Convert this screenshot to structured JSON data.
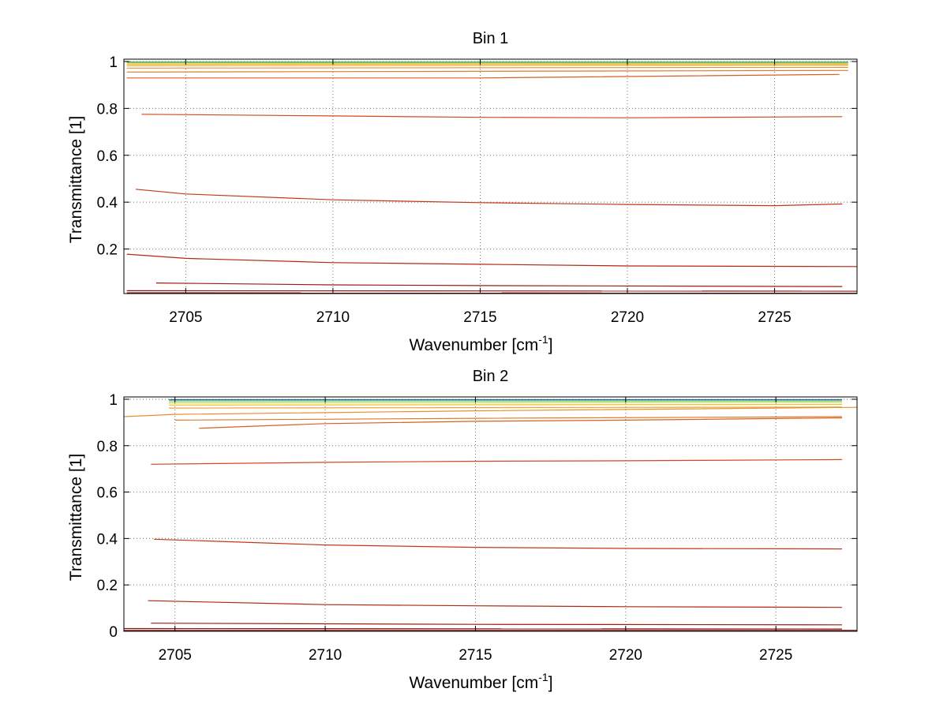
{
  "chart_data": [
    {
      "type": "line",
      "title": "Bin 1",
      "xlabel": "Wavenumber [cm",
      "xlabel_sup": "-1",
      "xlabel_end": "]",
      "ylabel": "Transmittance [1]",
      "xlim": [
        2702.9,
        2727.8
      ],
      "ylim": [
        0.01,
        1.01
      ],
      "xticks": [
        2705,
        2710,
        2715,
        2720,
        2725
      ],
      "yticks": [
        0.2,
        0.4,
        0.6,
        0.8,
        1
      ],
      "ytick_labels": [
        "0.2",
        "0.4",
        "0.6",
        "0.8",
        "1"
      ],
      "grid": true,
      "series": [
        {
          "color": "#1f8fc0",
          "x": [
            2703.0,
            2727.5
          ],
          "y": [
            0.998,
            0.998
          ]
        },
        {
          "color": "#5fc05a",
          "x": [
            2703.0,
            2727.5
          ],
          "y": [
            0.996,
            0.996
          ]
        },
        {
          "color": "#c8d83a",
          "x": [
            2703.0,
            2727.5
          ],
          "y": [
            0.993,
            0.993
          ]
        },
        {
          "color": "#f0c030",
          "x": [
            2703.0,
            2727.5
          ],
          "y": [
            0.988,
            0.99
          ]
        },
        {
          "color": "#f0a030",
          "x": [
            2703.0,
            2727.5
          ],
          "y": [
            0.982,
            0.985
          ]
        },
        {
          "color": "#e89030",
          "x": [
            2703.0,
            2727.5
          ],
          "y": [
            0.972,
            0.975
          ]
        },
        {
          "color": "#e07828",
          "x": [
            2703.0,
            2727.5
          ],
          "y": [
            0.955,
            0.962
          ]
        },
        {
          "color": "#d86020",
          "x": [
            2703.0,
            2715,
            2727.2
          ],
          "y": [
            0.93,
            0.93,
            0.945
          ]
        },
        {
          "color": "#d04a1c",
          "x": [
            2703.5,
            2710,
            2715,
            2720,
            2727.3
          ],
          "y": [
            0.775,
            0.768,
            0.762,
            0.76,
            0.765
          ]
        },
        {
          "color": "#c03a18",
          "x": [
            2703.3,
            2705,
            2710,
            2715,
            2720,
            2725,
            2727.3
          ],
          "y": [
            0.455,
            0.435,
            0.41,
            0.398,
            0.39,
            0.385,
            0.392
          ]
        },
        {
          "color": "#b02a14",
          "x": [
            2703.0,
            2705,
            2710,
            2715,
            2720,
            2727.8
          ],
          "y": [
            0.178,
            0.16,
            0.142,
            0.135,
            0.128,
            0.125
          ]
        },
        {
          "color": "#9a1e10",
          "x": [
            2704.0,
            2710,
            2715,
            2727.3
          ],
          "y": [
            0.055,
            0.047,
            0.044,
            0.04
          ]
        },
        {
          "color": "#8a140c",
          "x": [
            2703.0,
            2727.8
          ],
          "y": [
            0.022,
            0.02
          ]
        },
        {
          "color": "#700808",
          "x": [
            2703.0,
            2727.8
          ],
          "y": [
            0.013,
            0.012
          ]
        }
      ]
    },
    {
      "type": "line",
      "title": "Bin 2",
      "xlabel": "Wavenumber [cm",
      "xlabel_sup": "-1",
      "xlabel_end": "]",
      "ylabel": "Transmittance [1]",
      "xlim": [
        2703.3,
        2727.7
      ],
      "ylim": [
        0,
        1.01
      ],
      "xticks": [
        2705,
        2710,
        2715,
        2720,
        2725
      ],
      "yticks": [
        0,
        0.2,
        0.4,
        0.6,
        0.8,
        1
      ],
      "ytick_labels": [
        "0",
        "0.2",
        "0.4",
        "0.6",
        "0.8",
        "1"
      ],
      "grid": true,
      "series": [
        {
          "color": "#1f5fb0",
          "x": [
            2704.8,
            2727.2
          ],
          "y": [
            0.998,
            0.998
          ]
        },
        {
          "color": "#5fc05a",
          "x": [
            2704.8,
            2727.2
          ],
          "y": [
            0.993,
            0.993
          ]
        },
        {
          "color": "#c8d83a",
          "x": [
            2704.8,
            2727.2
          ],
          "y": [
            0.985,
            0.987
          ]
        },
        {
          "color": "#f0c030",
          "x": [
            2704.8,
            2727.2
          ],
          "y": [
            0.975,
            0.978
          ]
        },
        {
          "color": "#f0a030",
          "x": [
            2704.8,
            2727.2
          ],
          "y": [
            0.962,
            0.966
          ]
        },
        {
          "color": "#e89030",
          "x": [
            2703.3,
            2705,
            2715,
            2727.7
          ],
          "y": [
            0.925,
            0.935,
            0.95,
            0.965
          ]
        },
        {
          "color": "#e07828",
          "x": [
            2705.0,
            2715,
            2727.2
          ],
          "y": [
            0.91,
            0.918,
            0.925
          ]
        },
        {
          "color": "#d86020",
          "x": [
            2705.8,
            2710,
            2715,
            2720,
            2727.2
          ],
          "y": [
            0.875,
            0.895,
            0.905,
            0.91,
            0.92
          ]
        },
        {
          "color": "#d04a1c",
          "x": [
            2704.2,
            2710,
            2715,
            2720,
            2727.2
          ],
          "y": [
            0.72,
            0.728,
            0.733,
            0.735,
            0.74
          ]
        },
        {
          "color": "#c03a18",
          "x": [
            2704.3,
            2710,
            2715,
            2720,
            2727.2
          ],
          "y": [
            0.397,
            0.372,
            0.362,
            0.357,
            0.355
          ]
        },
        {
          "color": "#b02a14",
          "x": [
            2704.1,
            2710,
            2715,
            2720,
            2727.2
          ],
          "y": [
            0.132,
            0.115,
            0.11,
            0.106,
            0.103
          ]
        },
        {
          "color": "#9a1e10",
          "x": [
            2704.2,
            2715,
            2727.2
          ],
          "y": [
            0.035,
            0.03,
            0.028
          ]
        },
        {
          "color": "#8a140c",
          "x": [
            2703.3,
            2727.2
          ],
          "y": [
            0.012,
            0.01
          ]
        },
        {
          "color": "#700808",
          "x": [
            2703.3,
            2727.7
          ],
          "y": [
            0.004,
            0.004
          ]
        }
      ]
    }
  ]
}
